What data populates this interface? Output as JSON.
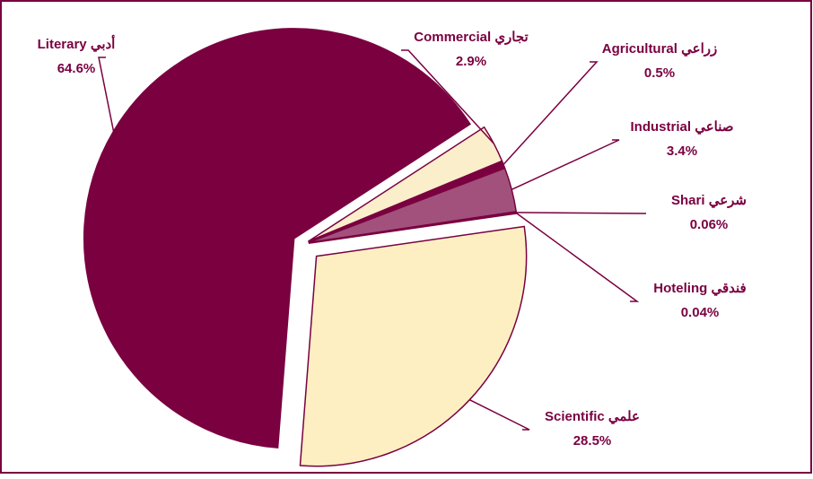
{
  "chart_data": {
    "type": "pie",
    "categories": [
      "Commercial تجاري",
      "Agricultural زراعي",
      "Industrial صناعي",
      "Shari شرعي",
      "Hoteling فندقي",
      "Scientific علمي",
      "Literary أدبي"
    ],
    "values": [
      2.9,
      0.5,
      3.4,
      0.06,
      0.04,
      28.5,
      64.6
    ],
    "value_labels": [
      "2.9%",
      "0.5%",
      "3.4%",
      "0.06%",
      "0.04%",
      "28.5%",
      "64.6%"
    ],
    "colors": [
      "#fbeecb",
      "#7a0040",
      "#a2517c",
      "#7a0040",
      "#7a0040",
      "#fdefc2",
      "#7a0040"
    ]
  }
}
